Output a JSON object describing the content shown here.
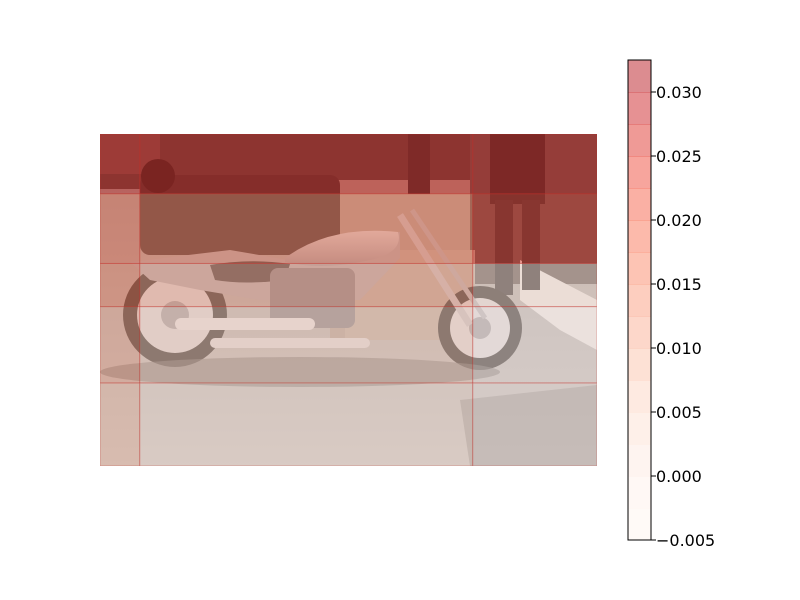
{
  "chart_data": {
    "type": "heatmap",
    "title": "",
    "xlabel": "",
    "ylabel": "",
    "axes_visible": false,
    "background_image": "photo-motorcycles-parked-on-street",
    "colormap": "Reds",
    "overlay_alpha": 0.5,
    "colorbar": {
      "orientation": "vertical",
      "placement": "right",
      "range": [
        -0.005,
        0.0325
      ],
      "ticks": [
        -0.005,
        0.0,
        0.005,
        0.01,
        0.015,
        0.02,
        0.025,
        0.03
      ],
      "tick_labels": [
        "−0.005",
        "0.000",
        "0.005",
        "0.010",
        "0.015",
        "0.020",
        "0.025",
        "0.030"
      ],
      "levels": [
        -0.005,
        -0.0025,
        0.0,
        0.0025,
        0.005,
        0.0075,
        0.01,
        0.0125,
        0.015,
        0.0175,
        0.02,
        0.0225,
        0.025,
        0.0275,
        0.03,
        0.0325
      ],
      "level_colors": [
        "#fff5f0",
        "#fff1ec",
        "#fee9e1",
        "#fee1d4",
        "#fdd5c4",
        "#fcc3ab",
        "#fcb095",
        "#fc9d7f",
        "#fb8969",
        "#fa7557",
        "#f5614a",
        "#ef4b3c",
        "#e0362e",
        "#ce2428",
        "#b91a22"
      ]
    },
    "heatmap_cells": [
      {
        "row": 0,
        "col": 0,
        "value": 0.026
      },
      {
        "row": 0,
        "col": 1,
        "value": 0.027
      },
      {
        "row": 0,
        "col": 2,
        "value": 0.026
      },
      {
        "row": 1,
        "col": 0,
        "value": 0.019
      },
      {
        "row": 1,
        "col": 1,
        "value": 0.017
      },
      {
        "row": 1,
        "col": 2,
        "value": 0.024
      },
      {
        "row": 2,
        "col": 0,
        "value": 0.016
      },
      {
        "row": 2,
        "col": 1,
        "value": 0.012
      },
      {
        "row": 2,
        "col": 2,
        "value": 0.004
      },
      {
        "row": 3,
        "col": 0,
        "value": 0.012
      },
      {
        "row": 3,
        "col": 1,
        "value": 0.006
      },
      {
        "row": 3,
        "col": 2,
        "value": 0.001
      },
      {
        "row": 4,
        "col": 0,
        "value": 0.009
      },
      {
        "row": 4,
        "col": 1,
        "value": 0.003
      },
      {
        "row": 4,
        "col": 2,
        "value": 0.0
      }
    ]
  }
}
